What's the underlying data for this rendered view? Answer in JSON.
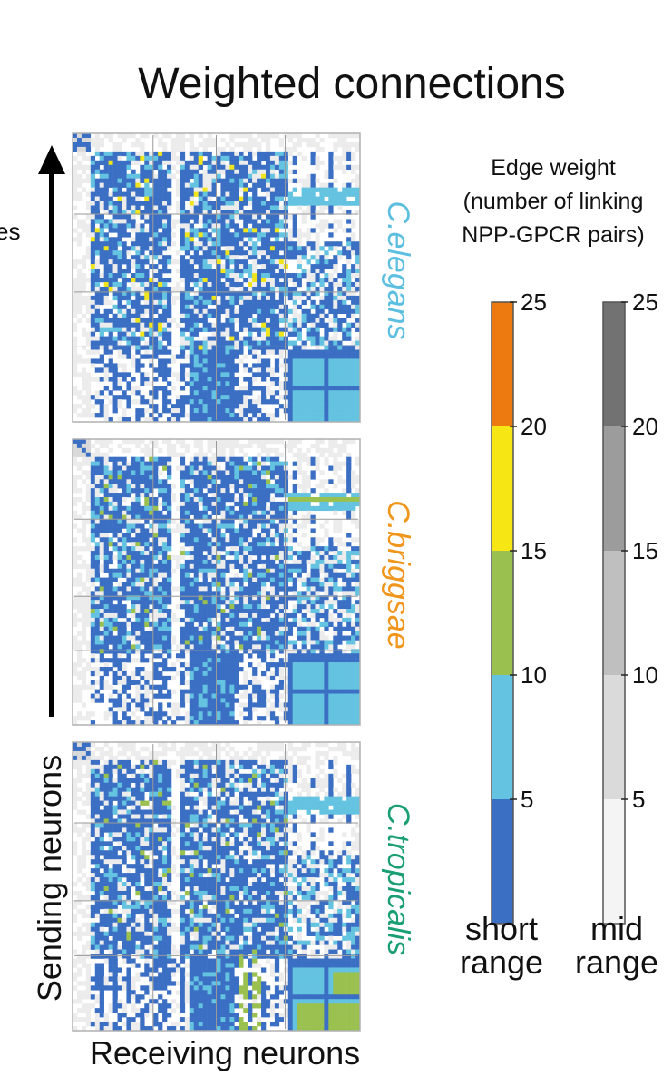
{
  "title": "Weighted connections",
  "y_axis": {
    "label": "Sending neurons",
    "cut_label": "es"
  },
  "x_axis": {
    "label": "Receiving neurons"
  },
  "panels": [
    {
      "species": "C.elegans",
      "color": "#5cbfe0"
    },
    {
      "species": "C.briggsae",
      "color": "#f0961c"
    },
    {
      "species": "C.tropicalis",
      "color": "#1a9f74"
    }
  ],
  "legend": {
    "title_lines": [
      "Edge weight",
      "(number of linking",
      "NPP-GPCR pairs)"
    ],
    "ticks": [
      "5",
      "10",
      "15",
      "20",
      "25"
    ],
    "bars": [
      {
        "name": "short range",
        "label_lines": [
          "short",
          "range"
        ],
        "colors": [
          "#3b6fc4",
          "#64c3e0",
          "#9ac150",
          "#f5e614",
          "#ec7a10"
        ]
      },
      {
        "name": "mid range",
        "label_lines": [
          "mid",
          "range"
        ],
        "colors": [
          "#f4f4f4",
          "#dadada",
          "#bfbfbf",
          "#9c9c9c",
          "#727272"
        ]
      }
    ]
  },
  "chart_data": {
    "type": "heatmap",
    "title": "Weighted connections",
    "xlabel": "Receiving neurons",
    "ylabel": "Sending neurons",
    "panels": [
      "C.elegans",
      "C.briggsae",
      "C.tropicalis"
    ],
    "colorbar": {
      "label": "Edge weight (number of linking NPP-GPCR pairs)",
      "range": [
        0,
        25
      ],
      "bins": [
        [
          0,
          5
        ],
        [
          5,
          10
        ],
        [
          10,
          15
        ],
        [
          15,
          20
        ],
        [
          20,
          25
        ]
      ],
      "ticks": [
        5,
        10,
        15,
        20,
        25
      ],
      "scales": [
        "short range",
        "mid range"
      ]
    }
  }
}
